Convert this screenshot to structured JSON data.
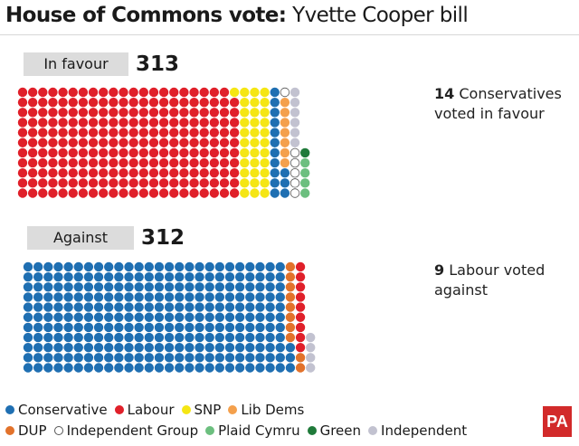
{
  "title": {
    "bold": "House of Commons vote:",
    "rest": "Yvette Cooper bill"
  },
  "favour": {
    "label": "In favour",
    "total": "313",
    "note_count": "14",
    "note_text_line1": "Conservatives",
    "note_text_line2": "voted in favour"
  },
  "against": {
    "label": "Against",
    "total": "312",
    "note_count": "9",
    "note_text_line1": "Labour voted",
    "note_text_line2": "against"
  },
  "colors": {
    "Conservative": "#1f6fb2",
    "Labour": "#e0202a",
    "SNP": "#f5e614",
    "Lib Dems": "#f4a04c",
    "DUP": "#e2722b",
    "Independent Group": "#ffffff",
    "Plaid Cymru": "#6cbf7f",
    "Green": "#1f7a3a",
    "Independent": "#c2c2d0"
  },
  "legend": [
    {
      "name": "Conservative"
    },
    {
      "name": "Labour"
    },
    {
      "name": "SNP"
    },
    {
      "name": "Lib Dems"
    },
    {
      "name": "DUP"
    },
    {
      "name": "Independent Group"
    },
    {
      "name": "Plaid Cymru"
    },
    {
      "name": "Green"
    },
    {
      "name": "Independent"
    }
  ],
  "logo": "PA",
  "chart_data": {
    "type": "waffle",
    "series": [
      {
        "name": "In favour",
        "total": 313,
        "parts": [
          {
            "party": "Labour",
            "count": 241
          },
          {
            "party": "SNP",
            "count": 34
          },
          {
            "party": "Conservative",
            "count": 14
          },
          {
            "party": "Lib Dems",
            "count": 7
          },
          {
            "party": "Independent Group",
            "count": 6
          },
          {
            "party": "Independent",
            "count": 6
          },
          {
            "party": "Plaid Cymru",
            "count": 4
          },
          {
            "party": "Green",
            "count": 1
          }
        ]
      },
      {
        "name": "Against",
        "total": 312,
        "parts": [
          {
            "party": "Conservative",
            "count": 289
          },
          {
            "party": "DUP",
            "count": 10
          },
          {
            "party": "Labour",
            "count": 9
          },
          {
            "party": "Independent",
            "count": 4
          }
        ]
      }
    ]
  }
}
